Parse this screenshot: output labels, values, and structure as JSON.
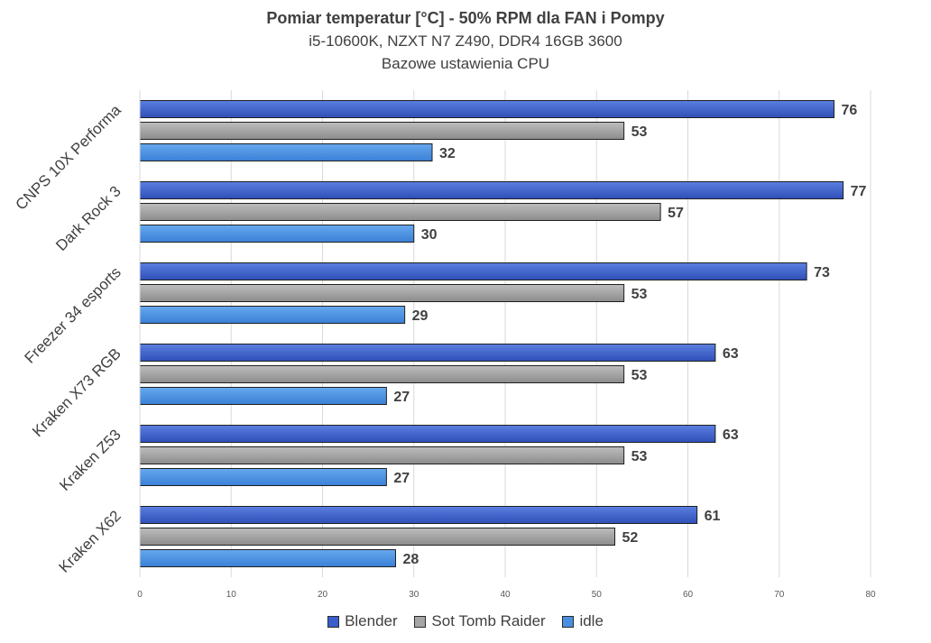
{
  "chart_data": {
    "type": "bar",
    "orientation": "horizontal",
    "title": "Pomiar temperatur [°C] - 50% RPM dla FAN i Pompy",
    "subtitle": [
      "i5-10600K, NZXT N7 Z490, DDR4 16GB 3600",
      "Bazowe ustawienia CPU"
    ],
    "xlabel": "",
    "ylabel": "",
    "xlim": [
      0,
      80
    ],
    "x_ticks": [
      0,
      10,
      20,
      30,
      40,
      50,
      60,
      70,
      80
    ],
    "grid": "vertical",
    "legend_position": "bottom",
    "categories": [
      "CNPS 10X Performa",
      "Dark Rock 3",
      "Freezer 34 esports",
      "Kraken X73 RGB",
      "Kraken Z53",
      "Kraken X62"
    ],
    "series": [
      {
        "name": "Blender",
        "color": "#3a5fcd",
        "values": [
          76,
          77,
          73,
          63,
          63,
          61
        ]
      },
      {
        "name": "Sot Tomb Raider",
        "color": "#a6a6a6",
        "values": [
          53,
          57,
          53,
          53,
          53,
          52
        ]
      },
      {
        "name": "idle",
        "color": "#4a90e2",
        "values": [
          32,
          30,
          29,
          27,
          27,
          28
        ]
      }
    ]
  }
}
